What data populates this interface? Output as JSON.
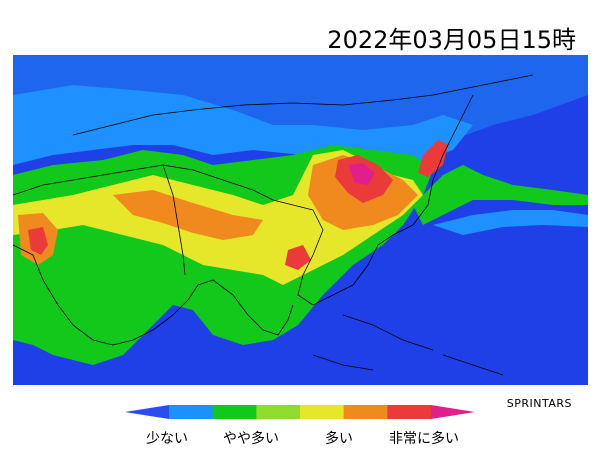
{
  "timestamp": "2022年03月05日15時",
  "credit": "SPRINTARS",
  "legend": {
    "colors": [
      "#2b4cf0",
      "#1e90ff",
      "#12c81a",
      "#8fdc2f",
      "#e6e62a",
      "#f08a1e",
      "#ea3a3a",
      "#e0208a"
    ],
    "labels": [
      "少ない",
      "やや多い",
      "多い",
      "非常に多い"
    ]
  },
  "map": {
    "ocean_color": "#1e40e6",
    "levels": {
      "low": "#1e90ff",
      "slightly_low": "#12c81a",
      "moderate": "#8fdc2f",
      "slightly_high": "#e6e62a",
      "high": "#f08a1e",
      "very_high": "#ea3a3a",
      "extreme": "#e0208a"
    }
  }
}
